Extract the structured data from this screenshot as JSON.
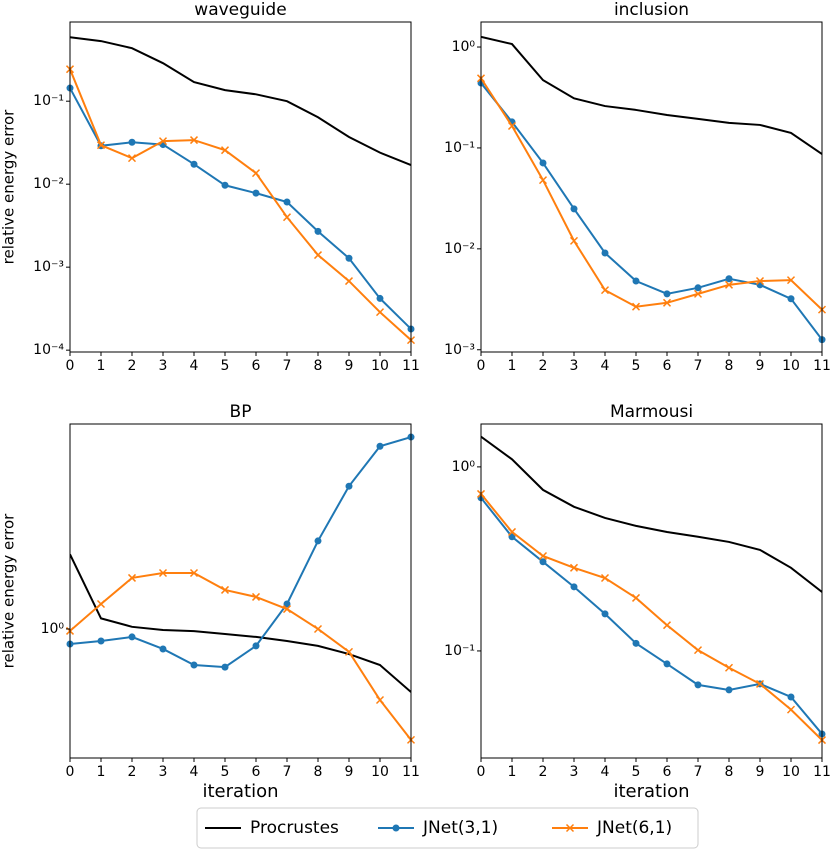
{
  "chart_data": [
    {
      "type": "line",
      "title": "waveguide",
      "ylabel": "relative energy error",
      "log_y": true,
      "x": [
        0,
        1,
        2,
        3,
        4,
        5,
        6,
        7,
        8,
        9,
        10,
        11
      ],
      "xlim": [
        0,
        11
      ],
      "xticks": [
        0,
        1,
        2,
        3,
        4,
        5,
        6,
        7,
        8,
        9,
        10,
        11
      ],
      "ylim": [
        9.5e-05,
        0.9
      ],
      "yticks": [
        {
          "value": 0.0001,
          "label": "10⁻⁴"
        },
        {
          "value": 0.001,
          "label": "10⁻³"
        },
        {
          "value": 0.01,
          "label": "10⁻²"
        },
        {
          "value": 0.1,
          "label": "10⁻¹"
        }
      ],
      "series": [
        {
          "name": "Procrustes",
          "color": "#000000",
          "values": [
            0.59,
            0.53,
            0.435,
            0.287,
            0.17,
            0.136,
            0.121,
            0.1,
            0.064,
            0.037,
            0.024,
            0.017
          ]
        },
        {
          "name": "JNet(3,1)",
          "color": "#1f77b4",
          "marker": "o",
          "values": [
            0.144,
            0.029,
            0.032,
            0.03,
            0.0174,
            0.0097,
            0.0078,
            0.0061,
            0.0027,
            0.00128,
            0.00042,
            0.00018
          ]
        },
        {
          "name": "JNet(6,1)",
          "color": "#ff7f0e",
          "marker": "x",
          "values": [
            0.243,
            0.0295,
            0.0206,
            0.033,
            0.034,
            0.0257,
            0.0136,
            0.004,
            0.0014,
            0.00068,
            0.000287,
            0.000132
          ]
        }
      ]
    },
    {
      "type": "line",
      "title": "inclusion",
      "log_y": true,
      "x": [
        0,
        1,
        2,
        3,
        4,
        5,
        6,
        7,
        8,
        9,
        10,
        11
      ],
      "xlim": [
        0,
        11
      ],
      "xticks": [
        0,
        1,
        2,
        3,
        4,
        5,
        6,
        7,
        8,
        9,
        10,
        11
      ],
      "ylim": [
        0.00095,
        1.77
      ],
      "yticks": [
        {
          "value": 0.001,
          "label": "10⁻³"
        },
        {
          "value": 0.01,
          "label": "10⁻²"
        },
        {
          "value": 0.1,
          "label": "10⁻¹"
        },
        {
          "value": 1,
          "label": "10⁰"
        }
      ],
      "series": [
        {
          "name": "Procrustes",
          "color": "#000000",
          "values": [
            1.26,
            1.07,
            0.47,
            0.31,
            0.26,
            0.238,
            0.212,
            0.194,
            0.177,
            0.169,
            0.141,
            0.087
          ]
        },
        {
          "name": "JNet(3,1)",
          "color": "#1f77b4",
          "marker": "o",
          "values": [
            0.44,
            0.181,
            0.071,
            0.0249,
            0.0091,
            0.0048,
            0.00358,
            0.00411,
            0.00505,
            0.0044,
            0.0032,
            0.00126
          ]
        },
        {
          "name": "JNet(6,1)",
          "color": "#ff7f0e",
          "marker": "x",
          "values": [
            0.49,
            0.165,
            0.048,
            0.012,
            0.0039,
            0.00267,
            0.00292,
            0.00358,
            0.0044,
            0.0048,
            0.0049,
            0.0025
          ]
        }
      ]
    },
    {
      "type": "line",
      "title": "BP",
      "ylabel": "relative energy error",
      "xlabel": "iteration",
      "log_y": true,
      "x": [
        0,
        1,
        2,
        3,
        4,
        5,
        6,
        7,
        8,
        9,
        10,
        11
      ],
      "xlim": [
        0,
        11
      ],
      "xticks": [
        0,
        1,
        2,
        3,
        4,
        5,
        6,
        7,
        8,
        9,
        10,
        11
      ],
      "ylim": [
        0.552,
        2.57
      ],
      "yticks": [
        {
          "value": 1,
          "label": "10⁰"
        }
      ],
      "series": [
        {
          "name": "Procrustes",
          "color": "#000000",
          "values": [
            1.41,
            1.05,
            1.01,
            0.995,
            0.99,
            0.977,
            0.964,
            0.946,
            0.925,
            0.891,
            0.847,
            0.748
          ]
        },
        {
          "name": "JNet(3,1)",
          "color": "#1f77b4",
          "marker": "o",
          "values": [
            0.933,
            0.946,
            0.964,
            0.912,
            0.847,
            0.839,
            0.925,
            1.122,
            1.5,
            1.93,
            2.32,
            2.42
          ]
        },
        {
          "name": "JNet(6,1)",
          "color": "#ff7f0e",
          "marker": "x",
          "values": [
            0.991,
            1.122,
            1.265,
            1.294,
            1.294,
            1.197,
            1.159,
            1.096,
            1.0,
            0.9,
            0.721,
            0.6
          ]
        }
      ]
    },
    {
      "type": "line",
      "title": "Marmousi",
      "xlabel": "iteration",
      "log_y": true,
      "x": [
        0,
        1,
        2,
        3,
        4,
        5,
        6,
        7,
        8,
        9,
        10,
        11
      ],
      "xlim": [
        0,
        11
      ],
      "xticks": [
        0,
        1,
        2,
        3,
        4,
        5,
        6,
        7,
        8,
        9,
        10,
        11
      ],
      "ylim": [
        0.0262,
        1.71
      ],
      "yticks": [
        {
          "value": 0.1,
          "label": "10⁻¹"
        },
        {
          "value": 1,
          "label": "10⁰"
        }
      ],
      "series": [
        {
          "name": "Procrustes",
          "color": "#000000",
          "values": [
            1.46,
            1.1,
            0.75,
            0.607,
            0.528,
            0.478,
            0.443,
            0.417,
            0.391,
            0.354,
            0.283,
            0.209
          ]
        },
        {
          "name": "JNet(3,1)",
          "color": "#1f77b4",
          "marker": "o",
          "values": [
            0.679,
            0.417,
            0.305,
            0.223,
            0.159,
            0.11,
            0.085,
            0.0654,
            0.0614,
            0.0662,
            0.0562,
            0.0354
          ]
        },
        {
          "name": "JNet(6,1)",
          "color": "#ff7f0e",
          "marker": "x",
          "values": [
            0.713,
            0.443,
            0.328,
            0.283,
            0.249,
            0.194,
            0.138,
            0.101,
            0.081,
            0.0662,
            0.048,
            0.0328
          ]
        }
      ]
    }
  ]
}
